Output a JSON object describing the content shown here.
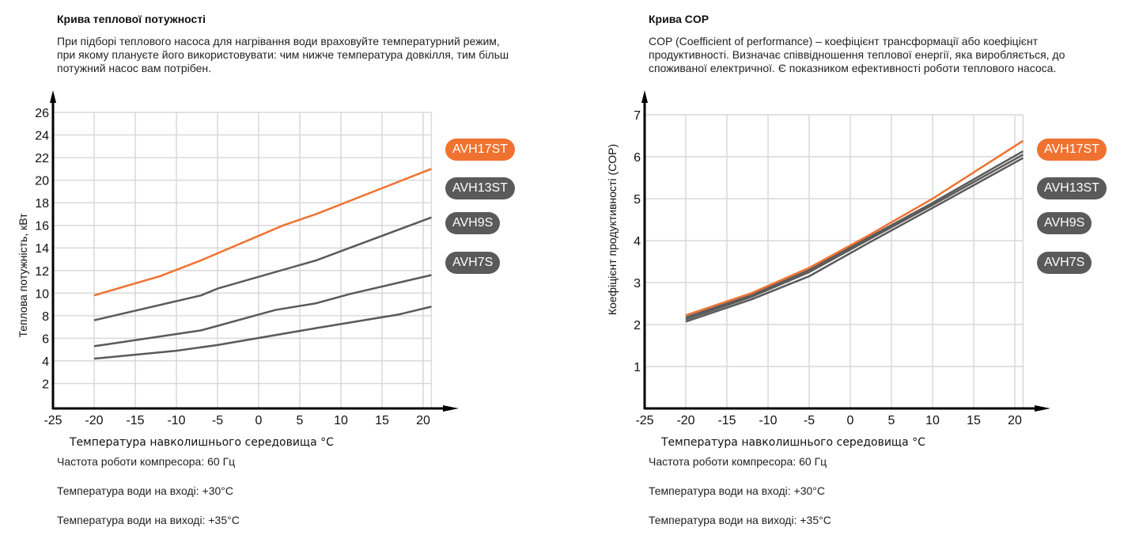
{
  "left_panel": {
    "title": "Крива теплової потужності",
    "description": "При підборі теплового насоса для нагрівання води враховуйте температурний режим, при якому плануєте його використовувати: чим нижче температура довкілля, тим більш потужний насос вам потрібен.",
    "notes": [
      "Частота роботи компресора: 60 Гц",
      "Температура води на вході: +30°C",
      "Температура води на виході: +35°C"
    ]
  },
  "right_panel": {
    "title": "Крива COP",
    "description": "COP (Coefficient of performance) – коефіцієнт трансформації або коефіцієнт продуктивності. Визначає співвідношення теплової енергії, яка виробляється, до споживаної електричної. Є показником ефективності роботи теплового насоса.",
    "notes": [
      "Частота роботи компресора: 60 Гц",
      "Температура води на вході: +30°C",
      "Температура води на виході: +35°C"
    ]
  },
  "colors": {
    "highlight": "#f07230",
    "default": "#5a5a5a",
    "grid": "#d9d9d9",
    "axis": "#000000"
  },
  "chart_data": [
    {
      "type": "line",
      "title": "Крива теплової потужності",
      "xlabel": "Температура навколишнього середовища °C",
      "ylabel": "Теплова потужність, кВт",
      "xlim": [
        -25,
        21
      ],
      "ylim": [
        0,
        26
      ],
      "xticks": [
        -25,
        -20,
        -15,
        -10,
        -5,
        0,
        5,
        10,
        15,
        20
      ],
      "yticks": [
        2,
        4,
        6,
        8,
        10,
        12,
        14,
        16,
        18,
        20,
        22,
        24,
        26
      ],
      "grid": true,
      "legend": "right",
      "series": [
        {
          "name": "AVH17ST",
          "highlight": true,
          "points": [
            [
              -20,
              9.8
            ],
            [
              -12,
              11.5
            ],
            [
              -7,
              12.9
            ],
            [
              3,
              16.0
            ],
            [
              7,
              17.0
            ],
            [
              21,
              21.0
            ]
          ]
        },
        {
          "name": "AVH13ST",
          "highlight": false,
          "points": [
            [
              -20,
              7.6
            ],
            [
              -7,
              9.8
            ],
            [
              -5,
              10.4
            ],
            [
              7,
              12.9
            ],
            [
              21,
              16.7
            ]
          ]
        },
        {
          "name": "AVH9S",
          "highlight": false,
          "points": [
            [
              -20,
              5.3
            ],
            [
              -7,
              6.7
            ],
            [
              2,
              8.5
            ],
            [
              7,
              9.1
            ],
            [
              11,
              9.9
            ],
            [
              21,
              11.6
            ]
          ]
        },
        {
          "name": "AVH7S",
          "highlight": false,
          "points": [
            [
              -20,
              4.2
            ],
            [
              -10,
              4.9
            ],
            [
              -5,
              5.4
            ],
            [
              7,
              6.9
            ],
            [
              17,
              8.1
            ],
            [
              21,
              8.8
            ]
          ]
        }
      ]
    },
    {
      "type": "line",
      "title": "Крива COP",
      "xlabel": "Температура навколишнього середовища °C",
      "ylabel": "Коефіцієнт продуктивності (COP)",
      "xlim": [
        -25,
        21
      ],
      "ylim": [
        0,
        7
      ],
      "xticks": [
        -25,
        -20,
        -15,
        -10,
        -5,
        0,
        5,
        10,
        15,
        20
      ],
      "yticks": [
        1,
        2,
        3,
        4,
        5,
        6,
        7
      ],
      "grid": true,
      "legend": "right",
      "series": [
        {
          "name": "AVH17ST",
          "highlight": true,
          "points": [
            [
              -20,
              2.22
            ],
            [
              -12,
              2.75
            ],
            [
              -5,
              3.35
            ],
            [
              2,
              4.1
            ],
            [
              10,
              5.0
            ],
            [
              21,
              6.38
            ]
          ]
        },
        {
          "name": "AVH13ST",
          "highlight": false,
          "points": [
            [
              -20,
              2.17
            ],
            [
              -12,
              2.7
            ],
            [
              -5,
              3.3
            ],
            [
              2,
              4.05
            ],
            [
              10,
              4.9
            ],
            [
              21,
              6.13
            ]
          ]
        },
        {
          "name": "AVH9S",
          "highlight": false,
          "points": [
            [
              -20,
              2.12
            ],
            [
              -12,
              2.66
            ],
            [
              -5,
              3.25
            ],
            [
              2,
              4.0
            ],
            [
              10,
              4.85
            ],
            [
              21,
              6.05
            ]
          ]
        },
        {
          "name": "AVH7S",
          "highlight": false,
          "points": [
            [
              -20,
              2.07
            ],
            [
              -12,
              2.6
            ],
            [
              -5,
              3.15
            ],
            [
              2,
              3.92
            ],
            [
              10,
              4.78
            ],
            [
              21,
              5.97
            ]
          ]
        }
      ]
    }
  ]
}
